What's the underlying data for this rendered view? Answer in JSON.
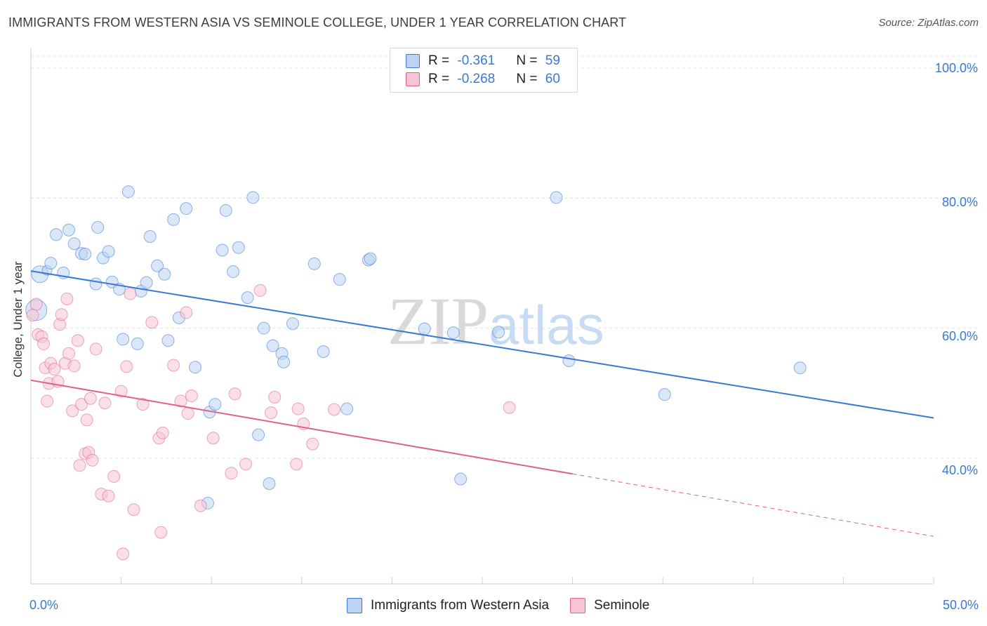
{
  "title": "IMMIGRANTS FROM WESTERN ASIA VS SEMINOLE COLLEGE, UNDER 1 YEAR CORRELATION CHART",
  "source": "Source: ZipAtlas.com",
  "watermark": {
    "zip": "ZIP",
    "atlas": "atlas"
  },
  "legend": {
    "rows": [
      {
        "r_label": "R = ",
        "r_value": "-0.361",
        "n_label": "N = ",
        "n_value": "59"
      },
      {
        "r_label": "R = ",
        "r_value": "-0.268",
        "n_label": "N = ",
        "n_value": "60"
      }
    ]
  },
  "colors": {
    "blue": "#3a78d4",
    "blue_fill": "#bcd3f3",
    "pink": "#e0608c",
    "pink_fill": "#f7c4d4"
  },
  "chart_data": {
    "type": "scatter",
    "xlabel": "",
    "ylabel": "College, Under 1 year",
    "xlim": [
      0,
      50
    ],
    "ylim": [
      20,
      104
    ],
    "x_tick_labels": [
      "0.0%",
      "50.0%"
    ],
    "y_ticks": [
      40,
      60,
      80,
      100
    ],
    "y_tick_labels": [
      "40.0%",
      "60.0%",
      "80.0%",
      "100.0%"
    ],
    "grid": true,
    "legend_position": "top-center",
    "series": [
      {
        "name": "Immigrants from Western Asia",
        "color": "#3a78d4",
        "trend": {
          "x": [
            0,
            50
          ],
          "y": [
            68.8,
            46.2
          ],
          "dashed_from": null
        },
        "points": [
          [
            0.3,
            62.8,
            30
          ],
          [
            0.5,
            68.3,
            24
          ],
          [
            0.9,
            68.9,
            14
          ],
          [
            1.1,
            70.0,
            12
          ],
          [
            1.8,
            68.5,
            12
          ],
          [
            1.4,
            74.4,
            12
          ],
          [
            2.1,
            75.1,
            12
          ],
          [
            2.4,
            73.0,
            12
          ],
          [
            2.8,
            71.5,
            12
          ],
          [
            3.0,
            71.4,
            12
          ],
          [
            3.6,
            66.8,
            12
          ],
          [
            3.7,
            75.5,
            12
          ],
          [
            4.0,
            70.8,
            12
          ],
          [
            4.3,
            71.8,
            12
          ],
          [
            4.5,
            67.1,
            12
          ],
          [
            4.9,
            66.0,
            12
          ],
          [
            5.1,
            58.3,
            12
          ],
          [
            5.4,
            81.0,
            12
          ],
          [
            5.9,
            57.6,
            12
          ],
          [
            6.1,
            65.7,
            12
          ],
          [
            6.4,
            67.0,
            12
          ],
          [
            6.6,
            74.1,
            12
          ],
          [
            7.0,
            69.6,
            12
          ],
          [
            7.4,
            68.3,
            12
          ],
          [
            7.6,
            58.1,
            12
          ],
          [
            7.9,
            76.7,
            12
          ],
          [
            8.2,
            61.6,
            12
          ],
          [
            8.6,
            78.4,
            12
          ],
          [
            9.1,
            54.0,
            12
          ],
          [
            9.8,
            33.1,
            12
          ],
          [
            9.9,
            47.1,
            12
          ],
          [
            10.2,
            48.3,
            12
          ],
          [
            10.6,
            72.0,
            12
          ],
          [
            10.8,
            78.1,
            12
          ],
          [
            11.2,
            68.7,
            12
          ],
          [
            11.5,
            72.4,
            12
          ],
          [
            12.0,
            64.7,
            12
          ],
          [
            12.3,
            80.1,
            12
          ],
          [
            12.6,
            43.6,
            12
          ],
          [
            12.9,
            60.0,
            12
          ],
          [
            13.2,
            36.1,
            12
          ],
          [
            13.4,
            57.3,
            12
          ],
          [
            13.9,
            56.1,
            12
          ],
          [
            14.0,
            54.8,
            12
          ],
          [
            14.5,
            60.7,
            12
          ],
          [
            15.7,
            69.9,
            12
          ],
          [
            16.2,
            56.4,
            12
          ],
          [
            17.1,
            67.5,
            12
          ],
          [
            17.5,
            47.6,
            12
          ],
          [
            18.7,
            70.5,
            12
          ],
          [
            18.8,
            70.7,
            12
          ],
          [
            21.8,
            59.9,
            12
          ],
          [
            23.4,
            59.3,
            12
          ],
          [
            23.8,
            36.8,
            12
          ],
          [
            25.9,
            59.4,
            12
          ],
          [
            29.1,
            80.1,
            12
          ],
          [
            29.8,
            55.0,
            12
          ],
          [
            35.1,
            49.8,
            12
          ],
          [
            42.6,
            53.9,
            12
          ]
        ]
      },
      {
        "name": "Seminole",
        "color": "#e0608c",
        "trend": {
          "x": [
            0,
            50
          ],
          "y": [
            52.0,
            28.0
          ],
          "dashed_from": 30.0
        },
        "points": [
          [
            0.1,
            62.0,
            12
          ],
          [
            0.3,
            63.7,
            12
          ],
          [
            0.4,
            59.0,
            12
          ],
          [
            0.6,
            58.7,
            12
          ],
          [
            0.7,
            57.6,
            12
          ],
          [
            0.8,
            53.9,
            12
          ],
          [
            0.9,
            48.8,
            12
          ],
          [
            1.0,
            51.5,
            12
          ],
          [
            1.1,
            54.6,
            12
          ],
          [
            1.3,
            53.7,
            12
          ],
          [
            1.5,
            51.8,
            12
          ],
          [
            1.6,
            60.6,
            12
          ],
          [
            1.7,
            62.1,
            12
          ],
          [
            1.9,
            54.6,
            12
          ],
          [
            2.0,
            64.5,
            12
          ],
          [
            2.1,
            56.1,
            12
          ],
          [
            2.3,
            47.3,
            12
          ],
          [
            2.4,
            54.2,
            12
          ],
          [
            2.6,
            58.1,
            12
          ],
          [
            2.7,
            38.9,
            12
          ],
          [
            2.8,
            48.3,
            12
          ],
          [
            3.0,
            40.7,
            12
          ],
          [
            3.1,
            45.9,
            12
          ],
          [
            3.2,
            40.9,
            12
          ],
          [
            3.3,
            49.2,
            12
          ],
          [
            3.4,
            39.7,
            12
          ],
          [
            3.6,
            56.8,
            12
          ],
          [
            3.9,
            34.5,
            12
          ],
          [
            4.1,
            48.5,
            12
          ],
          [
            4.3,
            34.2,
            12
          ],
          [
            4.6,
            37.2,
            12
          ],
          [
            5.0,
            50.3,
            12
          ],
          [
            5.1,
            25.3,
            12
          ],
          [
            5.3,
            54.1,
            12
          ],
          [
            5.5,
            65.3,
            12
          ],
          [
            5.7,
            32.1,
            12
          ],
          [
            6.2,
            48.3,
            12
          ],
          [
            6.7,
            60.9,
            12
          ],
          [
            7.1,
            43.1,
            12
          ],
          [
            7.2,
            28.6,
            12
          ],
          [
            7.3,
            43.9,
            12
          ],
          [
            7.9,
            54.3,
            12
          ],
          [
            8.3,
            48.8,
            12
          ],
          [
            8.6,
            62.4,
            12
          ],
          [
            8.7,
            46.9,
            12
          ],
          [
            8.9,
            49.6,
            12
          ],
          [
            9.4,
            32.7,
            12
          ],
          [
            10.1,
            43.1,
            12
          ],
          [
            11.1,
            37.7,
            12
          ],
          [
            11.3,
            49.9,
            12
          ],
          [
            11.9,
            39.1,
            12
          ],
          [
            12.7,
            65.8,
            12
          ],
          [
            13.3,
            47.0,
            12
          ],
          [
            13.5,
            49.4,
            12
          ],
          [
            14.7,
            39.1,
            12
          ],
          [
            14.8,
            47.6,
            12
          ],
          [
            15.1,
            45.3,
            12
          ],
          [
            15.6,
            42.2,
            12
          ],
          [
            16.8,
            47.5,
            12
          ],
          [
            26.5,
            47.8,
            12
          ]
        ]
      }
    ]
  }
}
